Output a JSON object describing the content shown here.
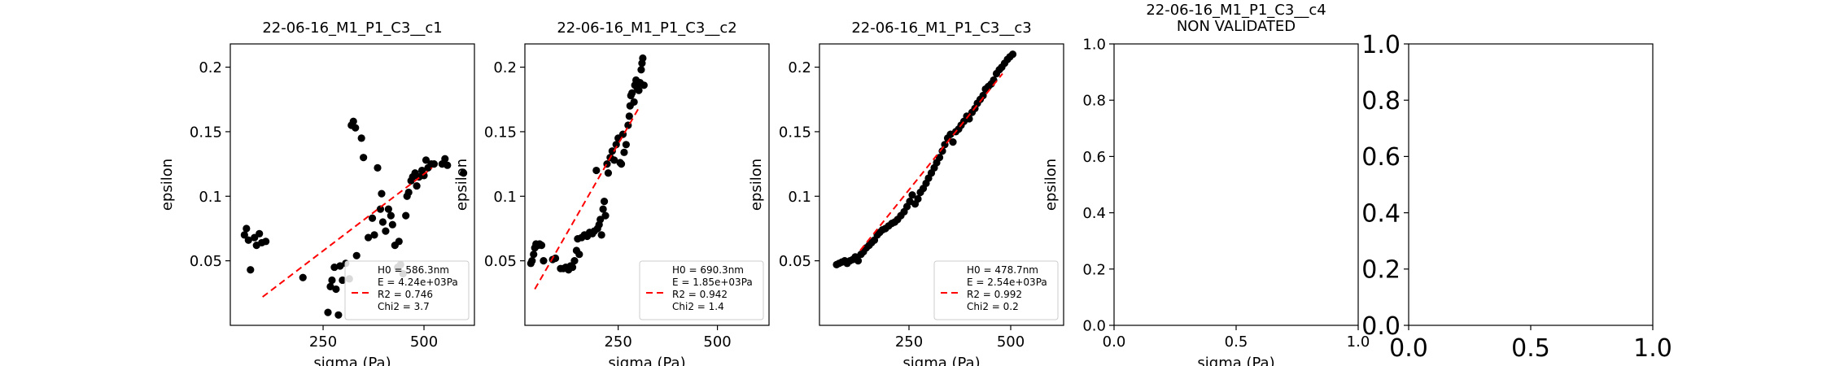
{
  "figure": {
    "background": "#ffffff"
  },
  "chart_data": [
    {
      "type": "scatter",
      "title": "22-06-16_M1_P1_C3__c1",
      "xlabel": "sigma (Pa)",
      "ylabel": "epsilon",
      "xlim": [
        20,
        625
      ],
      "ylim": [
        0.0,
        0.218
      ],
      "xticks": [
        250,
        500
      ],
      "yticks": [
        0.05,
        0.1,
        0.15,
        0.2
      ],
      "grid": false,
      "legend_position": "lower right",
      "point_color": "#000000",
      "fit_color": "#ff0000",
      "points": [
        [
          55,
          0.07
        ],
        [
          60,
          0.075
        ],
        [
          65,
          0.066
        ],
        [
          70,
          0.043
        ],
        [
          80,
          0.068
        ],
        [
          85,
          0.062
        ],
        [
          92,
          0.071
        ],
        [
          98,
          0.064
        ],
        [
          108,
          0.065
        ],
        [
          200,
          0.037
        ],
        [
          262,
          0.01
        ],
        [
          268,
          0.03
        ],
        [
          272,
          0.035
        ],
        [
          278,
          0.045
        ],
        [
          282,
          0.028
        ],
        [
          288,
          0.008
        ],
        [
          292,
          0.046
        ],
        [
          298,
          0.035
        ],
        [
          306,
          0.048
        ],
        [
          315,
          0.036
        ],
        [
          320,
          0.155
        ],
        [
          325,
          0.158
        ],
        [
          330,
          0.153
        ],
        [
          333,
          0.054
        ],
        [
          345,
          0.145
        ],
        [
          350,
          0.13
        ],
        [
          362,
          0.068
        ],
        [
          372,
          0.083
        ],
        [
          377,
          0.07
        ],
        [
          385,
          0.122
        ],
        [
          392,
          0.09
        ],
        [
          395,
          0.102
        ],
        [
          398,
          0.08
        ],
        [
          405,
          0.073
        ],
        [
          412,
          0.09
        ],
        [
          418,
          0.085
        ],
        [
          422,
          0.078
        ],
        [
          428,
          0.062
        ],
        [
          435,
          0.045
        ],
        [
          438,
          0.065
        ],
        [
          442,
          0.047
        ],
        [
          448,
          0.04
        ],
        [
          455,
          0.085
        ],
        [
          458,
          0.1
        ],
        [
          462,
          0.103
        ],
        [
          468,
          0.112
        ],
        [
          472,
          0.115
        ],
        [
          478,
          0.118
        ],
        [
          482,
          0.108
        ],
        [
          488,
          0.115
        ],
        [
          495,
          0.12
        ],
        [
          500,
          0.116
        ],
        [
          505,
          0.128
        ],
        [
          510,
          0.122
        ],
        [
          518,
          0.125
        ],
        [
          525,
          0.125
        ],
        [
          545,
          0.125
        ],
        [
          552,
          0.129
        ],
        [
          558,
          0.124
        ],
        [
          598,
          0.118
        ]
      ],
      "fit": {
        "x": [
          100,
          520
        ],
        "y": [
          0.022,
          0.122
        ],
        "style": "dashed"
      },
      "legend": [
        "H0 = 586.3nm",
        "E = 4.24e+03Pa",
        "R2 = 0.746",
        "Chi2 = 3.7"
      ]
    },
    {
      "type": "scatter",
      "title": "22-06-16_M1_P1_C3__c2",
      "xlabel": "sigma (Pa)",
      "ylabel": "epsilon",
      "xlim": [
        15,
        630
      ],
      "ylim": [
        0.0,
        0.218
      ],
      "xticks": [
        250,
        500
      ],
      "yticks": [
        0.05,
        0.1,
        0.15,
        0.2
      ],
      "grid": false,
      "legend_position": "lower right",
      "point_color": "#000000",
      "fit_color": "#ff0000",
      "points": [
        [
          30,
          0.048
        ],
        [
          33,
          0.05
        ],
        [
          37,
          0.055
        ],
        [
          40,
          0.06
        ],
        [
          43,
          0.063
        ],
        [
          48,
          0.062
        ],
        [
          52,
          0.063
        ],
        [
          57,
          0.062
        ],
        [
          62,
          0.05
        ],
        [
          85,
          0.051
        ],
        [
          92,
          0.052
        ],
        [
          105,
          0.044
        ],
        [
          112,
          0.044
        ],
        [
          118,
          0.045
        ],
        [
          125,
          0.043
        ],
        [
          130,
          0.046
        ],
        [
          135,
          0.045
        ],
        [
          140,
          0.05
        ],
        [
          145,
          0.058
        ],
        [
          148,
          0.067
        ],
        [
          152,
          0.055
        ],
        [
          158,
          0.068
        ],
        [
          165,
          0.07
        ],
        [
          172,
          0.069
        ],
        [
          178,
          0.072
        ],
        [
          185,
          0.071
        ],
        [
          190,
          0.073
        ],
        [
          195,
          0.12
        ],
        [
          198,
          0.075
        ],
        [
          202,
          0.078
        ],
        [
          205,
          0.082
        ],
        [
          208,
          0.07
        ],
        [
          212,
          0.09
        ],
        [
          215,
          0.096
        ],
        [
          218,
          0.085
        ],
        [
          222,
          0.125
        ],
        [
          225,
          0.118
        ],
        [
          230,
          0.13
        ],
        [
          235,
          0.135
        ],
        [
          240,
          0.128
        ],
        [
          245,
          0.14
        ],
        [
          250,
          0.145
        ],
        [
          255,
          0.126
        ],
        [
          258,
          0.125
        ],
        [
          262,
          0.148
        ],
        [
          265,
          0.134
        ],
        [
          270,
          0.14
        ],
        [
          275,
          0.155
        ],
        [
          278,
          0.162
        ],
        [
          280,
          0.17
        ],
        [
          282,
          0.178
        ],
        [
          285,
          0.18
        ],
        [
          290,
          0.173
        ],
        [
          292,
          0.186
        ],
        [
          295,
          0.19
        ],
        [
          298,
          0.184
        ],
        [
          302,
          0.182
        ],
        [
          305,
          0.188
        ],
        [
          308,
          0.198
        ],
        [
          310,
          0.203
        ],
        [
          312,
          0.207
        ],
        [
          315,
          0.186
        ]
      ],
      "fit": {
        "x": [
          40,
          305
        ],
        "y": [
          0.028,
          0.17
        ],
        "style": "dashed"
      },
      "legend": [
        "H0 = 690.3nm",
        "E = 1.85e+03Pa",
        "R2 = 0.942",
        "Chi2 = 1.4"
      ]
    },
    {
      "type": "scatter",
      "title": "22-06-16_M1_P1_C3__c3",
      "xlabel": "sigma (Pa)",
      "ylabel": "epsilon",
      "xlim": [
        30,
        630
      ],
      "ylim": [
        0.0,
        0.218
      ],
      "xticks": [
        250,
        500
      ],
      "yticks": [
        0.05,
        0.1,
        0.15,
        0.2
      ],
      "grid": false,
      "legend_position": "lower right",
      "point_color": "#000000",
      "fit_color": "#ff0000",
      "points": [
        [
          72,
          0.047
        ],
        [
          78,
          0.048
        ],
        [
          85,
          0.049
        ],
        [
          92,
          0.05
        ],
        [
          98,
          0.048
        ],
        [
          105,
          0.05
        ],
        [
          112,
          0.051
        ],
        [
          118,
          0.053
        ],
        [
          125,
          0.05
        ],
        [
          132,
          0.055
        ],
        [
          138,
          0.057
        ],
        [
          145,
          0.06
        ],
        [
          152,
          0.062
        ],
        [
          158,
          0.064
        ],
        [
          165,
          0.066
        ],
        [
          172,
          0.07
        ],
        [
          178,
          0.072
        ],
        [
          185,
          0.074
        ],
        [
          192,
          0.075
        ],
        [
          200,
          0.077
        ],
        [
          208,
          0.079
        ],
        [
          215,
          0.08
        ],
        [
          222,
          0.082
        ],
        [
          230,
          0.085
        ],
        [
          238,
          0.088
        ],
        [
          245,
          0.092
        ],
        [
          252,
          0.096
        ],
        [
          258,
          0.101
        ],
        [
          265,
          0.094
        ],
        [
          272,
          0.098
        ],
        [
          278,
          0.103
        ],
        [
          285,
          0.106
        ],
        [
          292,
          0.11
        ],
        [
          298,
          0.114
        ],
        [
          305,
          0.118
        ],
        [
          312,
          0.122
        ],
        [
          318,
          0.126
        ],
        [
          325,
          0.13
        ],
        [
          332,
          0.135
        ],
        [
          338,
          0.14
        ],
        [
          345,
          0.145
        ],
        [
          352,
          0.148
        ],
        [
          358,
          0.142
        ],
        [
          365,
          0.15
        ],
        [
          372,
          0.152
        ],
        [
          378,
          0.155
        ],
        [
          385,
          0.158
        ],
        [
          392,
          0.162
        ],
        [
          398,
          0.16
        ],
        [
          405,
          0.165
        ],
        [
          412,
          0.168
        ],
        [
          418,
          0.172
        ],
        [
          425,
          0.175
        ],
        [
          432,
          0.178
        ],
        [
          438,
          0.183
        ],
        [
          445,
          0.185
        ],
        [
          452,
          0.187
        ],
        [
          458,
          0.19
        ],
        [
          465,
          0.195
        ],
        [
          472,
          0.198
        ],
        [
          478,
          0.2
        ],
        [
          485,
          0.203
        ],
        [
          492,
          0.206
        ],
        [
          498,
          0.208
        ],
        [
          505,
          0.21
        ]
      ],
      "fit": {
        "x": [
          130,
          480
        ],
        "y": [
          0.058,
          0.195
        ],
        "style": "dashed"
      },
      "legend": [
        "H0 = 478.7nm",
        "E = 2.54e+03Pa",
        "R2 = 0.992",
        "Chi2 = 0.2"
      ]
    },
    {
      "type": "scatter",
      "title": "22-06-16_M1_P1_C3__c4",
      "subtitle": "NON VALIDATED",
      "xlabel": "sigma (Pa)",
      "ylabel": "epsilon",
      "xlim": [
        0,
        1
      ],
      "ylim": [
        0,
        1
      ],
      "xticks": [
        0.0,
        0.5,
        1.0
      ],
      "yticks": [
        0.0,
        0.2,
        0.4,
        0.6,
        0.8,
        1.0
      ],
      "xtick_labels": [
        "0.0",
        "0.5",
        "1.0"
      ],
      "ytick_labels": [
        "0.0",
        "0.2",
        "0.4",
        "0.6",
        "0.8",
        "1.0"
      ],
      "grid": false,
      "points": []
    },
    {
      "type": "scatter",
      "title": "",
      "xlabel": "",
      "ylabel": "",
      "xlim": [
        0,
        1
      ],
      "ylim": [
        0,
        1
      ],
      "xticks": [
        0.0,
        0.5,
        1.0
      ],
      "yticks": [
        0.0,
        0.2,
        0.4,
        0.6,
        0.8,
        1.0
      ],
      "xtick_labels": [
        "0.0",
        "0.5",
        "1.0"
      ],
      "ytick_labels": [
        "0.0",
        "0.2",
        "0.4",
        "0.6",
        "0.8",
        "1.0"
      ],
      "grid": false,
      "points": []
    }
  ]
}
